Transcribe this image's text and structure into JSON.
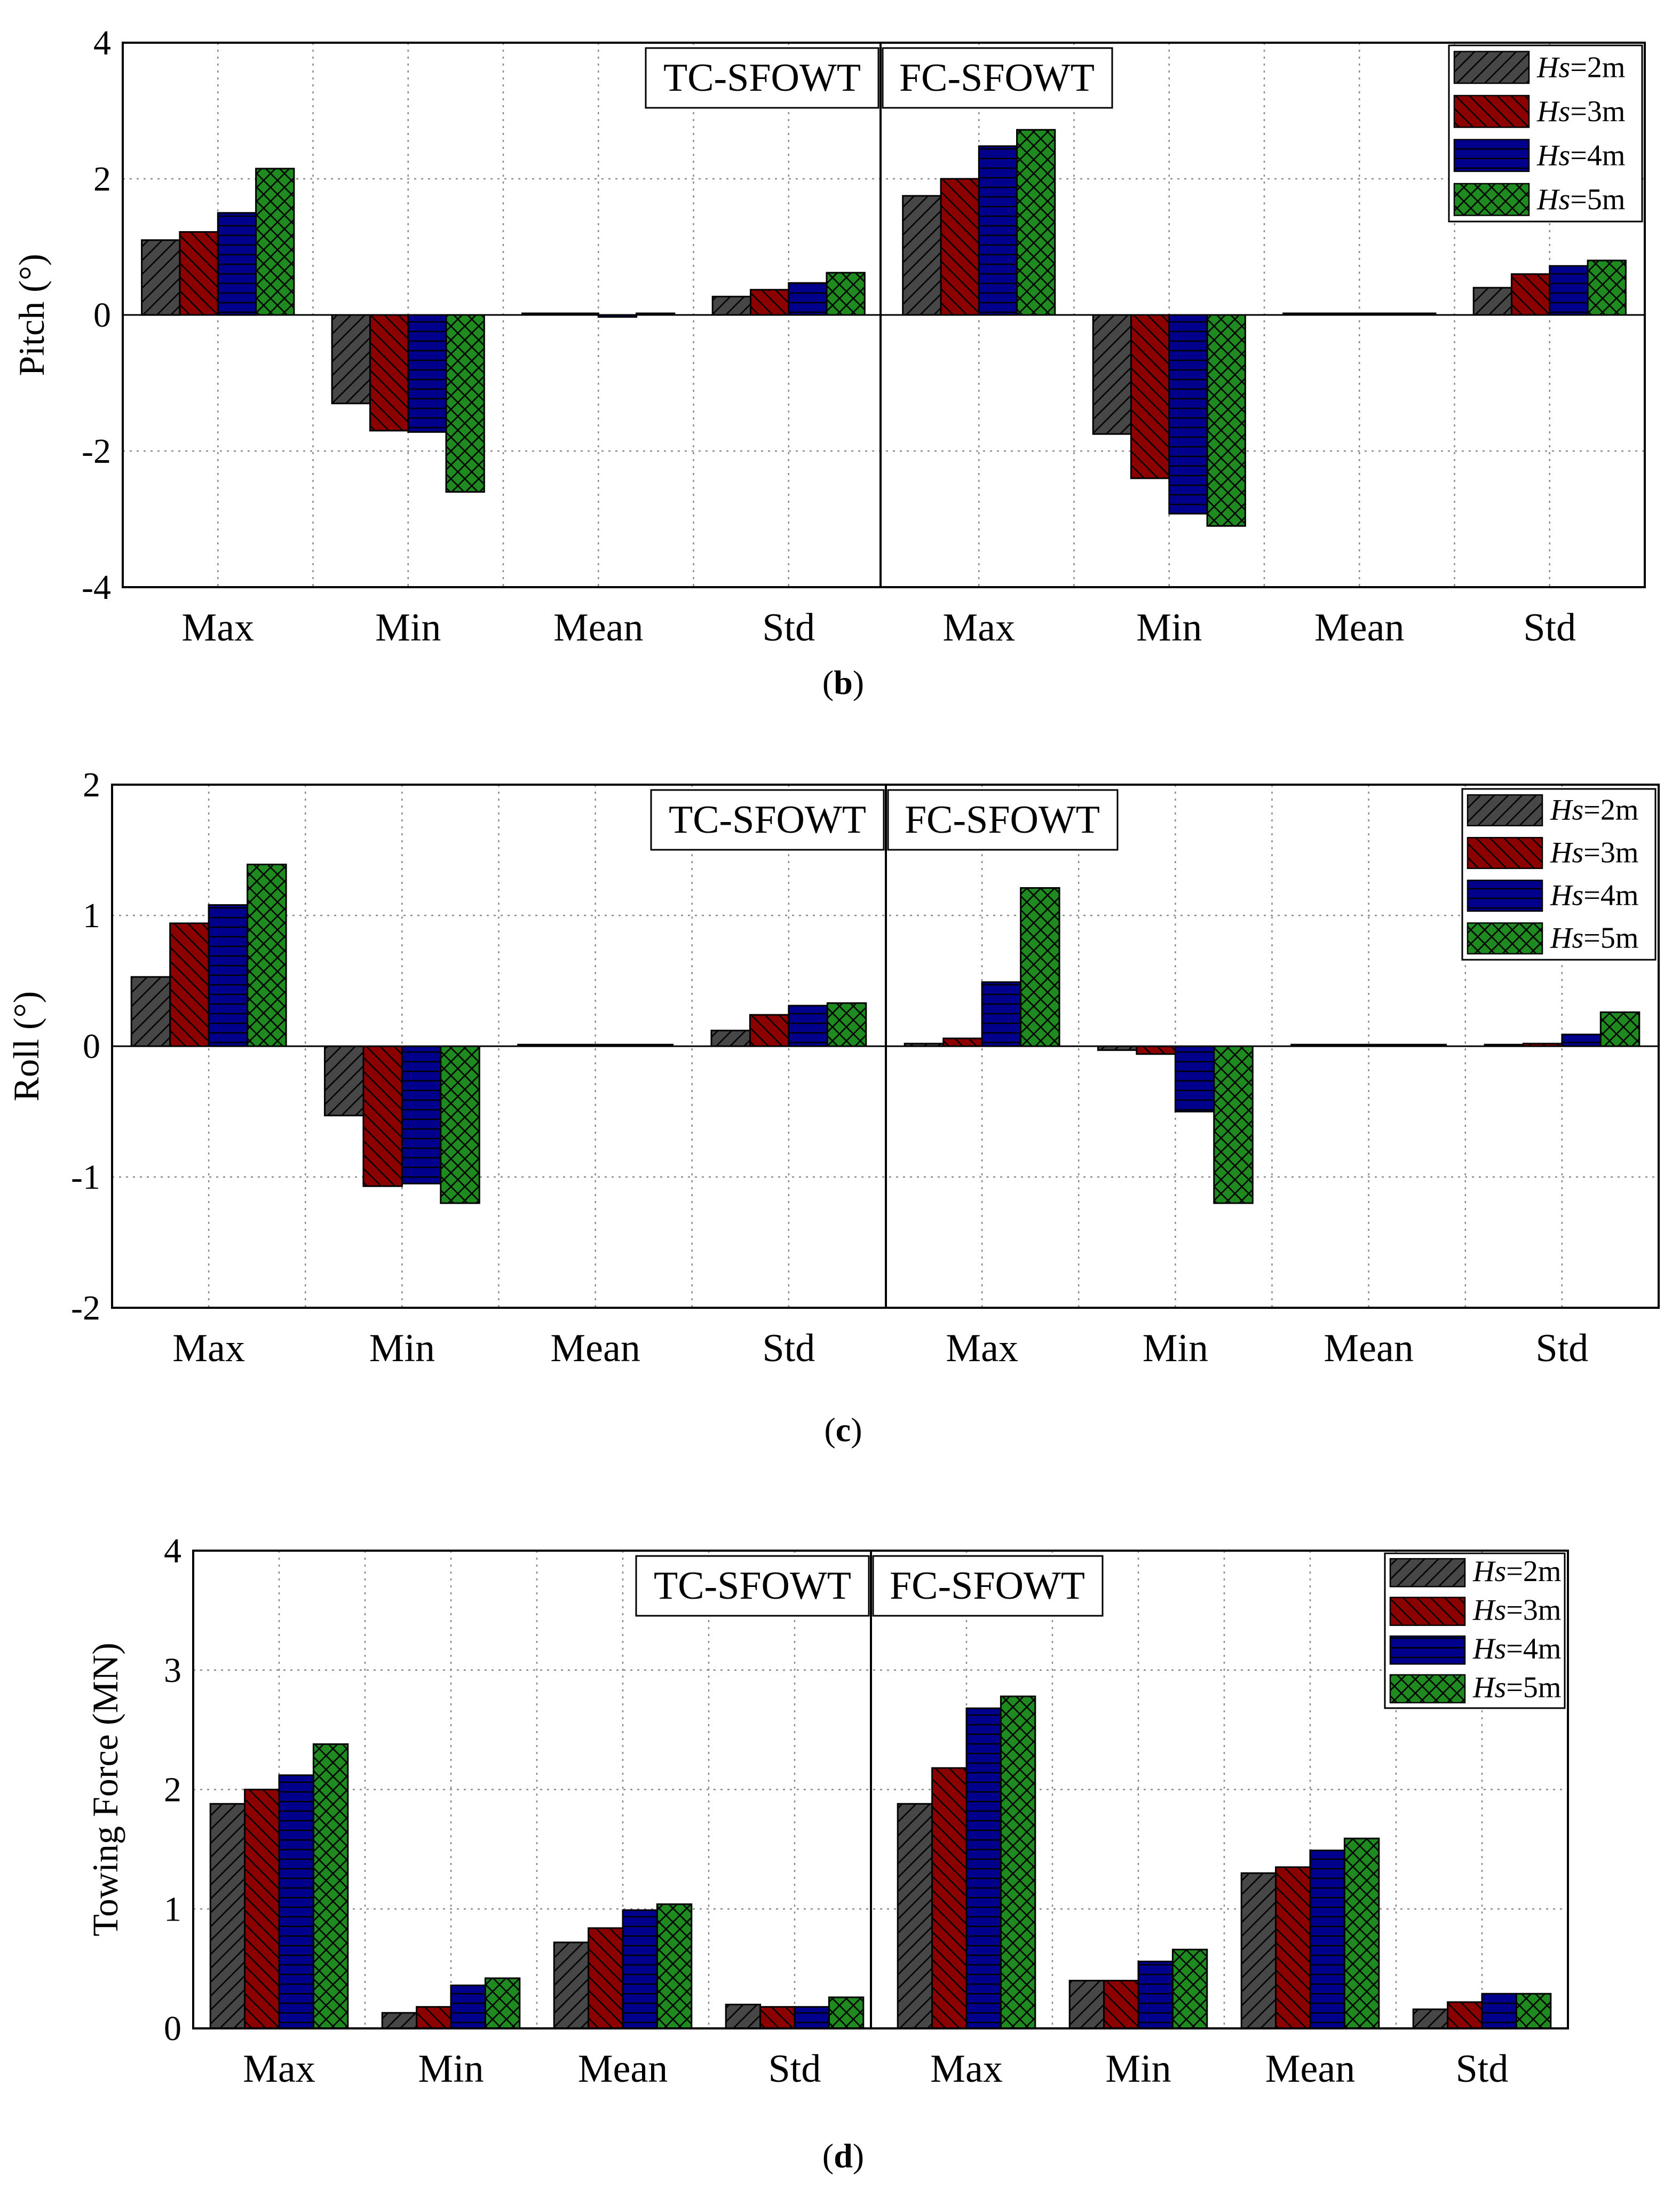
{
  "colors": {
    "Hs=2m": "#474747",
    "Hs=3m": "#8c0000",
    "Hs=4m": "#00008c",
    "Hs=5m": "#1f8a1f"
  },
  "patterns": [
    "diag-fwd",
    "diag-back",
    "horizontal",
    "crosshatch"
  ],
  "chart_data": [
    {
      "id": "b",
      "type": "bar",
      "caption": "b",
      "ylabel": "Pitch (°)",
      "ylim": [
        -4,
        4
      ],
      "yticks": [
        -4,
        -2,
        0,
        2,
        4
      ],
      "group_labels": [
        "TC-SFOWT",
        "FC-SFOWT"
      ],
      "categories": [
        "Max",
        "Min",
        "Mean",
        "Std",
        "Max",
        "Min",
        "Mean",
        "Std"
      ],
      "legend_position": "top-right",
      "grid": true,
      "series": [
        {
          "name": "Hs=2m",
          "legend": {
            "prefix": "Hs",
            "suffix": "=2m"
          },
          "values": [
            1.1,
            -1.3,
            0.0,
            0.27,
            1.75,
            -1.75,
            0.0,
            0.4
          ]
        },
        {
          "name": "Hs=3m",
          "legend": {
            "prefix": "Hs",
            "suffix": "=3m"
          },
          "values": [
            1.22,
            -1.7,
            0.0,
            0.37,
            2.0,
            -2.4,
            0.0,
            0.6
          ]
        },
        {
          "name": "Hs=4m",
          "legend": {
            "prefix": "Hs",
            "suffix": "=4m"
          },
          "values": [
            1.5,
            -1.72,
            -0.03,
            0.47,
            2.48,
            -2.92,
            0.0,
            0.72
          ]
        },
        {
          "name": "Hs=5m",
          "legend": {
            "prefix": "Hs",
            "suffix": "=5m"
          },
          "values": [
            2.15,
            -2.6,
            0.0,
            0.62,
            2.72,
            -3.1,
            0.0,
            0.8
          ]
        }
      ]
    },
    {
      "id": "c",
      "type": "bar",
      "caption": "c",
      "ylabel": "Roll (°)",
      "ylim": [
        -2,
        2
      ],
      "yticks": [
        -2,
        -1,
        0,
        1,
        2
      ],
      "group_labels": [
        "TC-SFOWT",
        "FC-SFOWT"
      ],
      "categories": [
        "Max",
        "Min",
        "Mean",
        "Std",
        "Max",
        "Min",
        "Mean",
        "Std"
      ],
      "legend_position": "top-right",
      "grid": true,
      "series": [
        {
          "name": "Hs=2m",
          "legend": {
            "prefix": "Hs",
            "suffix": "=2m"
          },
          "values": [
            0.53,
            -0.53,
            0.0,
            0.12,
            0.02,
            -0.03,
            0.0,
            0.01
          ]
        },
        {
          "name": "Hs=3m",
          "legend": {
            "prefix": "Hs",
            "suffix": "=3m"
          },
          "values": [
            0.94,
            -1.07,
            0.0,
            0.24,
            0.06,
            -0.06,
            0.0,
            0.02
          ]
        },
        {
          "name": "Hs=4m",
          "legend": {
            "prefix": "Hs",
            "suffix": "=4m"
          },
          "values": [
            1.08,
            -1.05,
            0.0,
            0.31,
            0.49,
            -0.5,
            0.0,
            0.09
          ]
        },
        {
          "name": "Hs=5m",
          "legend": {
            "prefix": "Hs",
            "suffix": "=5m"
          },
          "values": [
            1.39,
            -1.2,
            0.0,
            0.33,
            1.21,
            -1.2,
            0.0,
            0.26
          ]
        }
      ]
    },
    {
      "id": "d",
      "type": "bar",
      "caption": "d",
      "ylabel": "Towing Force (MN)",
      "ylim": [
        0,
        4
      ],
      "yticks": [
        0,
        1,
        2,
        3,
        4
      ],
      "group_labels": [
        "TC-SFOWT",
        "FC-SFOWT"
      ],
      "categories": [
        "Max",
        "Min",
        "Mean",
        "Std",
        "Max",
        "Min",
        "Mean",
        "Std"
      ],
      "legend_position": "top-right",
      "grid": true,
      "series": [
        {
          "name": "Hs=2m",
          "legend": {
            "prefix": "Hs",
            "suffix": "=2m"
          },
          "values": [
            1.88,
            0.13,
            0.72,
            0.2,
            1.88,
            0.4,
            1.3,
            0.16
          ]
        },
        {
          "name": "Hs=3m",
          "legend": {
            "prefix": "Hs",
            "suffix": "=3m"
          },
          "values": [
            2.0,
            0.18,
            0.84,
            0.18,
            2.18,
            0.4,
            1.35,
            0.22
          ]
        },
        {
          "name": "Hs=4m",
          "legend": {
            "prefix": "Hs",
            "suffix": "=4m"
          },
          "values": [
            2.12,
            0.36,
            0.99,
            0.18,
            2.68,
            0.56,
            1.49,
            0.29
          ]
        },
        {
          "name": "Hs=5m",
          "legend": {
            "prefix": "Hs",
            "suffix": "=5m"
          },
          "values": [
            2.38,
            0.42,
            1.04,
            0.26,
            2.78,
            0.66,
            1.59,
            0.29
          ]
        }
      ]
    }
  ]
}
